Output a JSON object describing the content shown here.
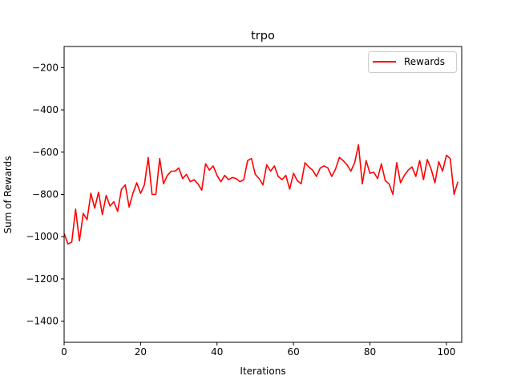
{
  "chart_data": {
    "type": "line",
    "title": "trpo",
    "xlabel": "Iterations",
    "ylabel": "Sum of Rewards",
    "xlim": [
      0,
      104
    ],
    "ylim": [
      -1500,
      -100
    ],
    "xticks": [
      0,
      20,
      40,
      60,
      80,
      100
    ],
    "yticks": [
      -1400,
      -1200,
      -1000,
      -800,
      -600,
      -400,
      -200
    ],
    "legend": "top-right",
    "grid": false,
    "series": [
      {
        "name": "Rewards",
        "color": "#ff0000",
        "x": [
          0,
          1,
          2,
          3,
          4,
          5,
          6,
          7,
          8,
          9,
          10,
          11,
          12,
          13,
          14,
          15,
          16,
          17,
          18,
          19,
          20,
          21,
          22,
          23,
          24,
          25,
          26,
          27,
          28,
          29,
          30,
          31,
          32,
          33,
          34,
          35,
          36,
          37,
          38,
          39,
          40,
          41,
          42,
          43,
          44,
          45,
          46,
          47,
          48,
          49,
          50,
          51,
          52,
          53,
          54,
          55,
          56,
          57,
          58,
          59,
          60,
          61,
          62,
          63,
          64,
          65,
          66,
          67,
          68,
          69,
          70,
          71,
          72,
          73,
          74,
          75,
          76,
          77,
          78,
          79,
          80,
          81,
          82,
          83,
          84,
          85,
          86,
          87,
          88,
          89,
          90,
          91,
          92,
          93,
          94,
          95,
          96,
          97,
          98,
          99,
          100,
          101,
          102,
          103
        ],
        "values": [
          -985,
          -1035,
          -1025,
          -870,
          -1020,
          -890,
          -920,
          -795,
          -865,
          -790,
          -895,
          -805,
          -855,
          -835,
          -880,
          -775,
          -755,
          -860,
          -795,
          -745,
          -795,
          -755,
          -625,
          -800,
          -800,
          -630,
          -750,
          -710,
          -690,
          -690,
          -675,
          -725,
          -705,
          -740,
          -730,
          -750,
          -780,
          -655,
          -685,
          -665,
          -710,
          -740,
          -710,
          -730,
          -720,
          -725,
          -740,
          -730,
          -640,
          -630,
          -705,
          -725,
          -755,
          -660,
          -690,
          -665,
          -715,
          -730,
          -710,
          -775,
          -700,
          -735,
          -750,
          -650,
          -670,
          -685,
          -715,
          -675,
          -665,
          -675,
          -715,
          -680,
          -625,
          -640,
          -660,
          -690,
          -650,
          -565,
          -750,
          -640,
          -700,
          -695,
          -725,
          -655,
          -735,
          -750,
          -800,
          -650,
          -745,
          -710,
          -685,
          -670,
          -715,
          -640,
          -730,
          -635,
          -680,
          -745,
          -645,
          -690,
          -615,
          -630,
          -800,
          -740
        ]
      }
    ]
  }
}
